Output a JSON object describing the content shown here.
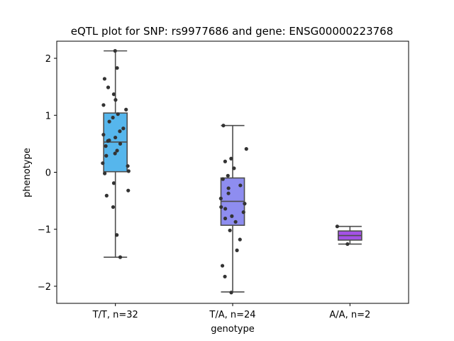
{
  "chart_data": {
    "type": "box",
    "title": "eQTL plot for SNP: rs9977686 and gene: ENSG00000223768",
    "xlabel": "genotype",
    "ylabel": "phenotype",
    "ylim": [
      -2.3,
      2.3
    ],
    "yticks": [
      -2,
      -1,
      0,
      1,
      2
    ],
    "yticklabels": [
      "−2",
      "−1",
      "0",
      "1",
      "2"
    ],
    "legend": "none",
    "grid": false,
    "categories": [
      "T/T, n=32",
      "T/A, n=24",
      "A/A, n=2"
    ],
    "box_colors": [
      "#56b6ec",
      "#8e8df0",
      "#a452e6"
    ],
    "boxes": [
      {
        "whislo": -1.49,
        "q1": 0.01,
        "med": 0.53,
        "q3": 1.04,
        "whishi": 2.13
      },
      {
        "whislo": -2.1,
        "q1": -0.93,
        "med": -0.51,
        "q3": -0.1,
        "whishi": 0.82
      },
      {
        "whislo": -1.26,
        "q1": -1.19,
        "med": -1.11,
        "q3": -1.03,
        "whishi": -0.95
      }
    ],
    "points": [
      [
        2.13,
        1.83,
        1.64,
        1.49,
        1.37,
        1.27,
        1.18,
        1.1,
        1.02,
        0.96,
        0.89,
        0.77,
        0.72,
        0.66,
        0.61,
        0.55,
        0.5,
        0.46,
        0.38,
        0.33,
        0.29,
        0.16,
        0.11,
        0.02,
        -0.02,
        -0.19,
        -0.32,
        -0.41,
        -0.61,
        -1.1,
        -1.49,
        0.56
      ],
      [
        0.82,
        0.41,
        0.24,
        0.19,
        0.07,
        -0.06,
        -0.12,
        -0.23,
        -0.28,
        -0.37,
        -0.46,
        -0.55,
        -0.64,
        -0.7,
        -0.77,
        -0.81,
        -0.87,
        -1.02,
        -1.18,
        -1.37,
        -1.64,
        -1.83,
        -2.11,
        -0.61
      ],
      [
        -0.95,
        -1.26
      ]
    ]
  }
}
